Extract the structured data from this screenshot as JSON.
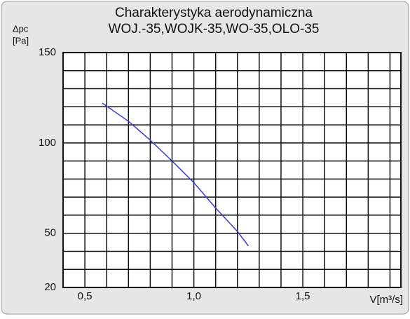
{
  "chart_data": {
    "type": "line",
    "title": "Charakterystyka aerodynamiczna",
    "subtitle": "WOJ.-35,WOJK-35,WO-35,OLO-35",
    "ylabel": "Δpc",
    "yunit": "[Pa]",
    "xlabel": "V[m³/s]",
    "x": [
      0.58,
      0.7,
      0.8,
      0.9,
      1.0,
      1.1,
      1.2,
      1.25
    ],
    "series": [
      {
        "color": "#3a3adb",
        "values": [
          122,
          112,
          101.5,
          90,
          78,
          64,
          51,
          43
        ]
      }
    ],
    "xlim": [
      0.4,
      1.95
    ],
    "ylim": [
      20,
      150
    ],
    "xticks": [
      {
        "value": 0.5,
        "label": "0,5"
      },
      {
        "value": 1.0,
        "label": "1,0"
      },
      {
        "value": 1.5,
        "label": "1,5"
      }
    ],
    "yticks": [
      20,
      50,
      100,
      150
    ],
    "xminor": [
      0.6,
      0.7,
      0.8,
      0.9,
      1.1,
      1.2,
      1.3,
      1.4,
      1.6,
      1.7,
      1.8,
      1.9
    ],
    "yminor": [
      30,
      40,
      60,
      70,
      80,
      90,
      110,
      120,
      130,
      140
    ],
    "grid": true
  }
}
